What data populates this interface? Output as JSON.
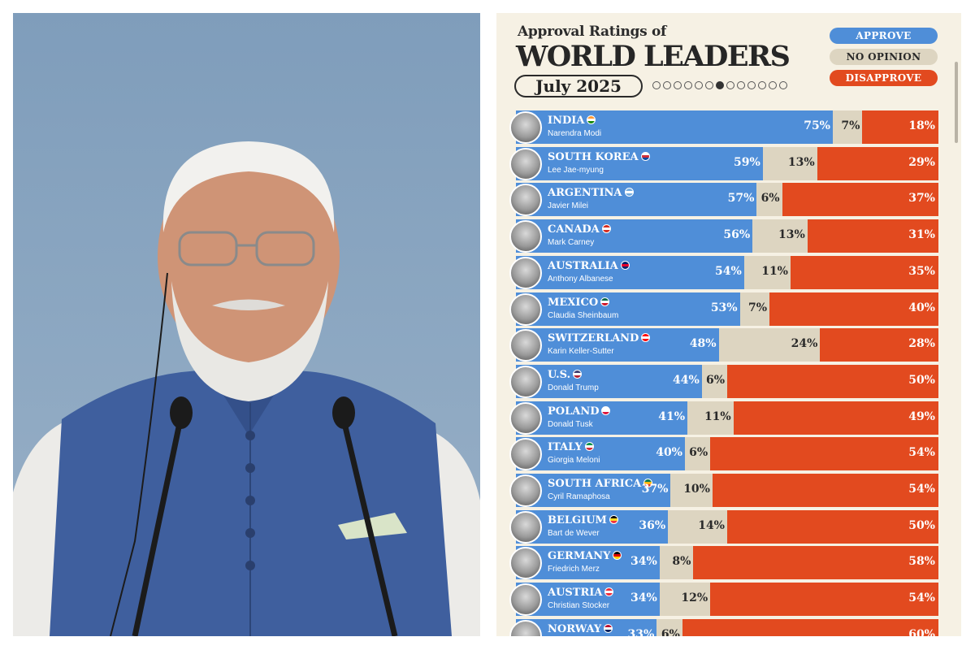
{
  "chart_data": {
    "type": "bar",
    "subtitle": "Approval Ratings of",
    "title": "WORLD LEADERS",
    "period": "July 2025",
    "legend": [
      {
        "label": "APPROVE",
        "color": "#4f8ed8",
        "text_color": "#ffffff"
      },
      {
        "label": "NO OPINION",
        "color": "#ddd5c1",
        "text_color": "#2a2a2a"
      },
      {
        "label": "DISAPPROVE",
        "color": "#e24a1f",
        "text_color": "#ffffff"
      }
    ],
    "page_indicator": {
      "total": 13,
      "active": 7
    },
    "rows": [
      {
        "country": "INDIA",
        "leader": "Narendra Modi",
        "approve": 75,
        "no_opinion": 7,
        "disapprove": 18,
        "flag_colors": [
          "#ff9933",
          "#ffffff",
          "#138808"
        ]
      },
      {
        "country": "SOUTH KOREA",
        "leader": "Lee Jae-myung",
        "approve": 59,
        "no_opinion": 13,
        "disapprove": 29,
        "flag_colors": [
          "#ffffff",
          "#cd2e3a",
          "#0047a0"
        ]
      },
      {
        "country": "ARGENTINA",
        "leader": "Javier Milei",
        "approve": 57,
        "no_opinion": 6,
        "disapprove": 37,
        "flag_colors": [
          "#74acdf",
          "#ffffff",
          "#74acdf"
        ]
      },
      {
        "country": "CANADA",
        "leader": "Mark Carney",
        "approve": 56,
        "no_opinion": 13,
        "disapprove": 31,
        "flag_colors": [
          "#d52b1e",
          "#ffffff",
          "#d52b1e"
        ]
      },
      {
        "country": "AUSTRALIA",
        "leader": "Anthony Albanese",
        "approve": 54,
        "no_opinion": 11,
        "disapprove": 35,
        "flag_colors": [
          "#012169",
          "#e4002b",
          "#012169"
        ]
      },
      {
        "country": "MEXICO",
        "leader": "Claudia Sheinbaum",
        "approve": 53,
        "no_opinion": 7,
        "disapprove": 40,
        "flag_colors": [
          "#006847",
          "#ffffff",
          "#ce1126"
        ]
      },
      {
        "country": "SWITZERLAND",
        "leader": "Karin Keller-Sutter",
        "approve": 48,
        "no_opinion": 24,
        "disapprove": 28,
        "flag_colors": [
          "#ff0000",
          "#ffffff",
          "#ff0000"
        ]
      },
      {
        "country": "U.S.",
        "leader": "Donald Trump",
        "approve": 44,
        "no_opinion": 6,
        "disapprove": 50,
        "flag_colors": [
          "#3c3b6e",
          "#ffffff",
          "#b22234"
        ]
      },
      {
        "country": "POLAND",
        "leader": "Donald Tusk",
        "approve": 41,
        "no_opinion": 11,
        "disapprove": 49,
        "flag_colors": [
          "#ffffff",
          "#ffffff",
          "#dc143c"
        ]
      },
      {
        "country": "ITALY",
        "leader": "Giorgia Meloni",
        "approve": 40,
        "no_opinion": 6,
        "disapprove": 54,
        "flag_colors": [
          "#009246",
          "#ffffff",
          "#ce2b37"
        ]
      },
      {
        "country": "SOUTH AFRICA",
        "leader": "Cyril Ramaphosa",
        "approve": 37,
        "no_opinion": 10,
        "disapprove": 54,
        "flag_colors": [
          "#007a4d",
          "#ffb612",
          "#de3831"
        ]
      },
      {
        "country": "BELGIUM",
        "leader": "Bart de Wever",
        "approve": 36,
        "no_opinion": 14,
        "disapprove": 50,
        "flag_colors": [
          "#000000",
          "#fdda24",
          "#ef3340"
        ]
      },
      {
        "country": "GERMANY",
        "leader": "Friedrich Merz",
        "approve": 34,
        "no_opinion": 8,
        "disapprove": 58,
        "flag_colors": [
          "#000000",
          "#dd0000",
          "#ffce00"
        ]
      },
      {
        "country": "AUSTRIA",
        "leader": "Christian Stocker",
        "approve": 34,
        "no_opinion": 12,
        "disapprove": 54,
        "flag_colors": [
          "#ed2939",
          "#ffffff",
          "#ed2939"
        ]
      },
      {
        "country": "NORWAY",
        "leader": "",
        "approve": 33,
        "no_opinion": 6,
        "disapprove": 60,
        "flag_colors": [
          "#ba0c2f",
          "#ffffff",
          "#00205b"
        ]
      }
    ]
  }
}
